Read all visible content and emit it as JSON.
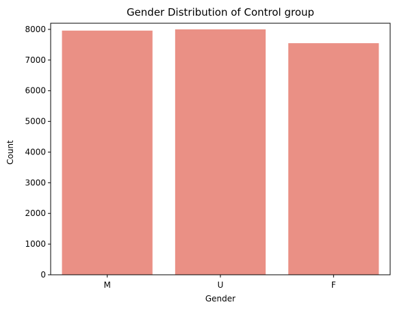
{
  "chart_data": {
    "type": "bar",
    "title": "Gender Distribution of Control group",
    "xlabel": "Gender",
    "ylabel": "Count",
    "categories": [
      "M",
      "U",
      "F"
    ],
    "values": [
      7960,
      8000,
      7550
    ],
    "ylim": [
      0,
      8200
    ],
    "yticks": [
      0,
      1000,
      2000,
      3000,
      4000,
      5000,
      6000,
      7000,
      8000
    ],
    "bar_color": "#ea9085",
    "grid": false,
    "legend": "none"
  }
}
